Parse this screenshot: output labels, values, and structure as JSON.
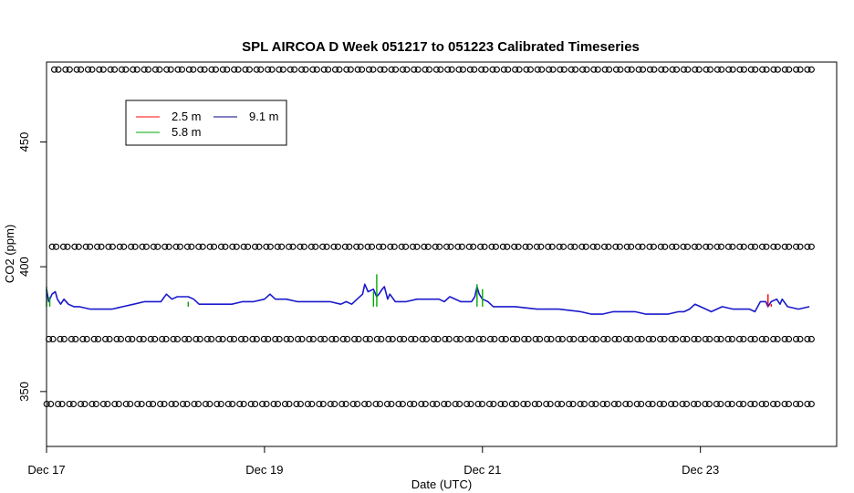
{
  "chart_data": {
    "type": "line",
    "title": "SPL AIRCOA D  Week 051217 to 051223  Calibrated Timeseries",
    "xlabel": "Date (UTC)",
    "ylabel": "CO2 (ppm)",
    "xlim": [
      0,
      7.25
    ],
    "ylim": [
      328,
      482
    ],
    "x_ticks": [
      {
        "value": 0,
        "label": "Dec 17"
      },
      {
        "value": 2,
        "label": "Dec 19"
      },
      {
        "value": 4,
        "label": "Dec 21"
      },
      {
        "value": 6,
        "label": "Dec 23"
      }
    ],
    "y_ticks": [
      {
        "value": 350,
        "label": "350"
      },
      {
        "value": 400,
        "label": "400"
      },
      {
        "value": 450,
        "label": "450"
      }
    ],
    "grid": false,
    "legend": {
      "position": "top-left",
      "entries": [
        {
          "label": "2.5 m",
          "color": "#ff0000"
        },
        {
          "label": "9.1 m",
          "color": "#000080"
        },
        {
          "label": "5.8 m",
          "color": "#00aa00"
        }
      ]
    },
    "series": [
      {
        "name": "9.1 m",
        "color": "#1a1acc",
        "x": [
          0.0,
          0.02,
          0.05,
          0.08,
          0.1,
          0.13,
          0.16,
          0.2,
          0.25,
          0.3,
          0.4,
          0.5,
          0.6,
          0.7,
          0.8,
          0.9,
          1.0,
          1.05,
          1.1,
          1.15,
          1.2,
          1.25,
          1.3,
          1.35,
          1.4,
          1.45,
          1.5,
          1.6,
          1.7,
          1.8,
          1.9,
          2.0,
          2.05,
          2.1,
          2.15,
          2.2,
          2.3,
          2.4,
          2.5,
          2.6,
          2.7,
          2.75,
          2.8,
          2.85,
          2.9,
          2.92,
          2.95,
          3.0,
          3.03,
          3.05,
          3.08,
          3.1,
          3.13,
          3.15,
          3.2,
          3.3,
          3.4,
          3.5,
          3.6,
          3.65,
          3.7,
          3.8,
          3.9,
          3.93,
          3.95,
          3.97,
          4.0,
          4.05,
          4.1,
          4.2,
          4.3,
          4.5,
          4.7,
          4.9,
          5.0,
          5.1,
          5.2,
          5.3,
          5.4,
          5.5,
          5.6,
          5.7,
          5.8,
          5.85,
          5.9,
          5.95,
          6.0,
          6.1,
          6.2,
          6.3,
          6.4,
          6.45,
          6.5,
          6.55,
          6.6,
          6.62,
          6.65,
          6.7,
          6.73,
          6.75,
          6.8,
          6.9,
          7.0
        ],
        "values": [
          391,
          386,
          389,
          390,
          387,
          385,
          387,
          385,
          384,
          384,
          383,
          383,
          383,
          384,
          385,
          386,
          386,
          386,
          389,
          387,
          388,
          388,
          388,
          387,
          385,
          385,
          385,
          385,
          385,
          386,
          386,
          387,
          389,
          387,
          387,
          387,
          386,
          386,
          386,
          386,
          385,
          386,
          385,
          387,
          389,
          393,
          390,
          391,
          388,
          389,
          391,
          392,
          387,
          389,
          386,
          386,
          387,
          387,
          387,
          386,
          388,
          386,
          386,
          388,
          392,
          389,
          387,
          386,
          384,
          384,
          384,
          383,
          383,
          382,
          381,
          381,
          382,
          382,
          382,
          381,
          381,
          381,
          382,
          382,
          383,
          385,
          384,
          382,
          384,
          383,
          383,
          383,
          382,
          386,
          386,
          384,
          386,
          387,
          385,
          387,
          384,
          383,
          384
        ]
      },
      {
        "name": "5.8 m",
        "color": "#00aa00",
        "x": [
          0.0,
          0.03,
          1.3,
          3.0,
          3.03,
          3.95,
          4.0
        ],
        "values": [
          392,
          388,
          386,
          390,
          397,
          393,
          391
        ]
      },
      {
        "name": "2.5 m",
        "color": "#ff0000",
        "x": [
          6.58,
          6.62,
          6.65
        ],
        "values": [
          384,
          389,
          385
        ]
      }
    ],
    "marker_rows": [
      {
        "y": 479,
        "x_start": 0.09,
        "x_end": 7.0,
        "count": 68
      },
      {
        "y": 408,
        "x_start": 0.07,
        "x_end": 7.0,
        "count": 68
      },
      {
        "y": 371,
        "x_start": 0.04,
        "x_end": 7.0,
        "count": 68
      },
      {
        "y": 345,
        "x_start": 0.02,
        "x_end": 7.0,
        "count": 68
      }
    ]
  }
}
